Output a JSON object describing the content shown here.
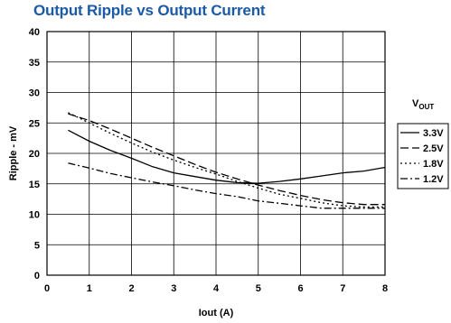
{
  "chart_data": {
    "type": "line",
    "title": "Output Ripple vs Output Current",
    "xlabel": "Iout (A)",
    "ylabel": "Ripple - mV",
    "xlim": [
      0,
      8
    ],
    "ylim": [
      0,
      40
    ],
    "xticks": [
      "0",
      "1",
      "2",
      "3",
      "4",
      "5",
      "6",
      "7",
      "8"
    ],
    "yticks": [
      "0",
      "5",
      "10",
      "15",
      "20",
      "25",
      "30",
      "35",
      "40"
    ],
    "grid": true,
    "legend": {
      "title_main": "V",
      "title_sub": "OUT",
      "placement": "right"
    },
    "series": [
      {
        "name": "3.3V",
        "dash": "solid",
        "points": [
          [
            0.5,
            23.8
          ],
          [
            1,
            22.0
          ],
          [
            1.5,
            20.5
          ],
          [
            2,
            19.2
          ],
          [
            2.5,
            17.8
          ],
          [
            3,
            16.8
          ],
          [
            3.5,
            16.2
          ],
          [
            4,
            15.6
          ],
          [
            4.5,
            15.2
          ],
          [
            5,
            15.1
          ],
          [
            5.5,
            15.4
          ],
          [
            6,
            15.8
          ],
          [
            6.5,
            16.3
          ],
          [
            7,
            16.8
          ],
          [
            7.5,
            17.1
          ],
          [
            8,
            17.7
          ]
        ]
      },
      {
        "name": "2.5V",
        "dash": "long-dash",
        "points": [
          [
            0.5,
            26.5
          ],
          [
            1,
            25.4
          ],
          [
            1.5,
            24.0
          ],
          [
            2,
            22.5
          ],
          [
            2.5,
            21.0
          ],
          [
            3,
            19.6
          ],
          [
            3.5,
            18.2
          ],
          [
            4,
            16.9
          ],
          [
            4.5,
            15.8
          ],
          [
            5,
            14.8
          ],
          [
            5.5,
            13.9
          ],
          [
            6,
            13.1
          ],
          [
            6.5,
            12.4
          ],
          [
            7,
            11.9
          ],
          [
            7.5,
            11.6
          ],
          [
            8,
            11.6
          ]
        ]
      },
      {
        "name": "1.8V",
        "dash": "dotted",
        "points": [
          [
            0.5,
            26.7
          ],
          [
            1,
            25.0
          ],
          [
            1.5,
            23.3
          ],
          [
            2,
            21.7
          ],
          [
            2.5,
            20.2
          ],
          [
            3,
            18.9
          ],
          [
            3.5,
            17.7
          ],
          [
            4,
            16.6
          ],
          [
            4.5,
            15.4
          ],
          [
            5,
            14.3
          ],
          [
            5.5,
            13.3
          ],
          [
            6,
            12.6
          ],
          [
            6.5,
            11.9
          ],
          [
            7,
            11.4
          ],
          [
            7.5,
            11.2
          ],
          [
            8,
            11.2
          ]
        ]
      },
      {
        "name": "1.2V",
        "dash": "dash-dot",
        "points": [
          [
            0.5,
            18.4
          ],
          [
            1,
            17.6
          ],
          [
            1.5,
            16.7
          ],
          [
            2,
            16.0
          ],
          [
            2.5,
            15.3
          ],
          [
            3,
            14.7
          ],
          [
            3.5,
            14.0
          ],
          [
            4,
            13.4
          ],
          [
            4.5,
            12.9
          ],
          [
            5,
            12.2
          ],
          [
            5.5,
            11.8
          ],
          [
            6,
            11.4
          ],
          [
            6.5,
            11.0
          ],
          [
            7,
            11.0
          ],
          [
            7.5,
            11.0
          ],
          [
            8,
            11.0
          ]
        ]
      }
    ]
  }
}
